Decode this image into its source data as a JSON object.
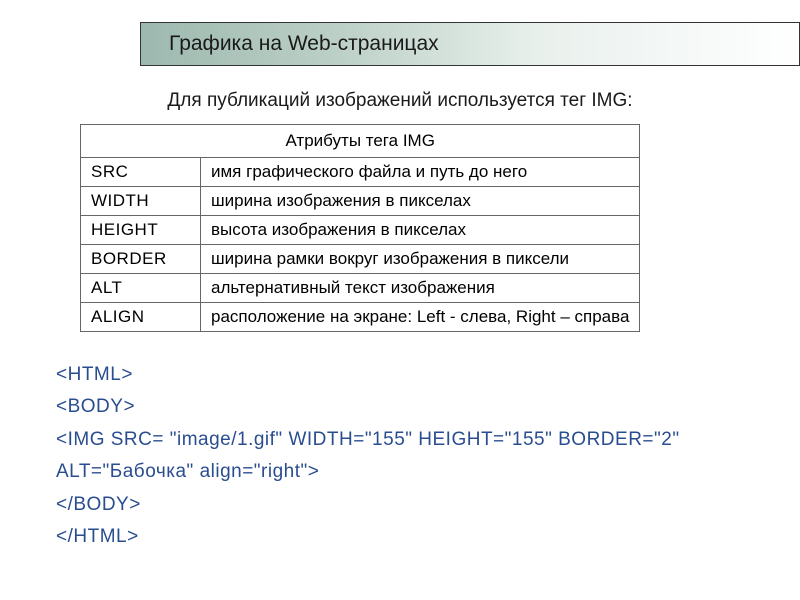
{
  "title": "Графика на Web-страницах",
  "subtitle": "Для публикаций изображений используется тег IMG:",
  "table": {
    "header": "Атрибуты тега IMG",
    "rows": [
      {
        "name": "SRC",
        "desc": "имя графического файла и путь до него"
      },
      {
        "name": "WIDTH",
        "desc": "ширина изображения в пикселах"
      },
      {
        "name": "HEIGHT",
        "desc": "высота изображения в пикселах"
      },
      {
        "name": "BORDER",
        "desc": "ширина рамки вокруг изображения в пиксели"
      },
      {
        "name": "ALT",
        "desc": "альтернативный текст изображения"
      },
      {
        "name": "ALIGN",
        "desc": "расположение на экране: Left - слева, Right – справа"
      }
    ]
  },
  "code": {
    "lines": [
      "<HTML>",
      "<BODY>",
      "<IMG SRC= \"image/1.gif\" WIDTH=\"155\" HEIGHT=\"155\" BORDER=\"2\"",
      "ALT=\"Бабочка\" align=\"right\">",
      "</BODY>",
      "</HTML>"
    ]
  },
  "colors": {
    "title_bg_start": "#9db9af",
    "title_bg_end": "#ffffff",
    "border": "#333333",
    "table_border": "#666666",
    "text": "#1a1a1a",
    "code": "#2a4d8f",
    "background": "#ffffff"
  },
  "typography": {
    "title_fontsize": 21,
    "subtitle_fontsize": 19,
    "table_fontsize": 17,
    "code_fontsize": 19
  }
}
